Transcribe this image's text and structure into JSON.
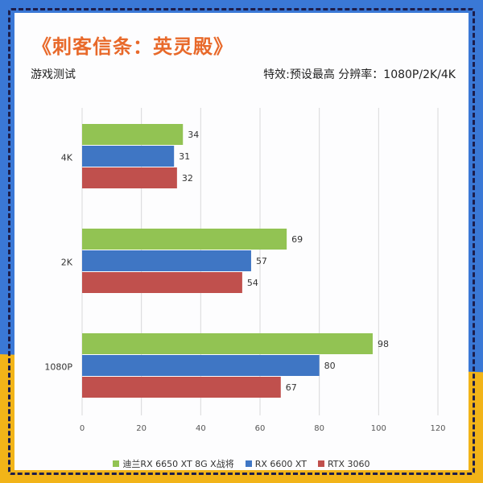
{
  "title": "《刺客信条：英灵殿》",
  "subtitle_left": "游戏测试",
  "subtitle_right": "特效:预设最高  分辨率：1080P/2K/4K",
  "colors": {
    "background_blue": "#3a78d6",
    "background_yellow": "#f2b418",
    "title_orange": "#e8692a"
  },
  "chart_data": {
    "type": "bar",
    "orientation": "horizontal",
    "categories": [
      "4K",
      "2K",
      "1080P"
    ],
    "series": [
      {
        "name": "迪兰RX 6650 XT 8G X战将",
        "color": "#92c353",
        "values": [
          34,
          69,
          98
        ]
      },
      {
        "name": "RX 6600 XT",
        "color": "#3f76c4",
        "values": [
          31,
          57,
          80
        ]
      },
      {
        "name": "RTX 3060",
        "color": "#c0504d",
        "values": [
          32,
          54,
          67
        ]
      }
    ],
    "xlim": [
      0,
      120
    ],
    "xticks": [
      "0",
      "20",
      "40",
      "60",
      "80",
      "100",
      "120"
    ],
    "grid": true,
    "legend_position": "bottom"
  }
}
